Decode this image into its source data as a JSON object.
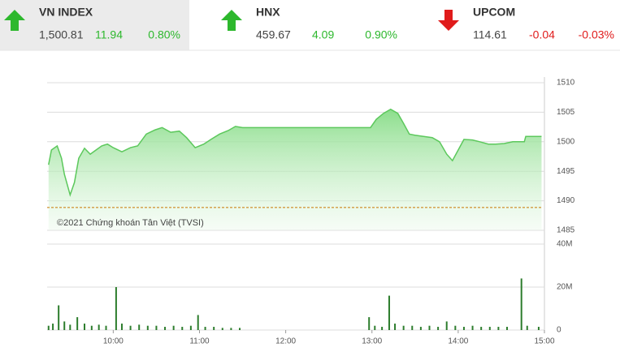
{
  "indices": [
    {
      "name": "VN INDEX",
      "value": "1,500.81",
      "change": "11.94",
      "percent": "0.80%",
      "direction": "up",
      "highlighted": true
    },
    {
      "name": "HNX",
      "value": "459.67",
      "change": "4.09",
      "percent": "0.90%",
      "direction": "up",
      "highlighted": false
    },
    {
      "name": "UPCOM",
      "value": "114.61",
      "change": "-0.04",
      "percent": "-0.03%",
      "direction": "down",
      "highlighted": false
    }
  ],
  "chart_data": [
    {
      "type": "area",
      "x": [
        555,
        557,
        561,
        564,
        566,
        570,
        573,
        576,
        580,
        584,
        588,
        592,
        596,
        600,
        606,
        612,
        617,
        623,
        629,
        634,
        640,
        646,
        651,
        657,
        663,
        668,
        674,
        680,
        685,
        690,
        719,
        779,
        783,
        788,
        793,
        798,
        802,
        806,
        810,
        816,
        822,
        827,
        832,
        836,
        840,
        844,
        850,
        855,
        861,
        866,
        872,
        878,
        886,
        887,
        898
      ],
      "values": [
        1496.1,
        1498.6,
        1499.3,
        1497.2,
        1494.5,
        1491.0,
        1493.1,
        1497.2,
        1498.9,
        1497.9,
        1498.6,
        1499.3,
        1499.6,
        1499.0,
        1498.3,
        1499.0,
        1499.3,
        1501.3,
        1502.0,
        1502.4,
        1501.6,
        1501.8,
        1500.7,
        1499.0,
        1499.6,
        1500.4,
        1501.3,
        1501.9,
        1502.6,
        1502.4,
        1502.4,
        1502.4,
        1503.8,
        1504.8,
        1505.5,
        1504.8,
        1503.1,
        1501.3,
        1501.1,
        1500.9,
        1500.7,
        1500.0,
        1497.9,
        1496.8,
        1498.6,
        1500.4,
        1500.3,
        1500.0,
        1499.6,
        1499.6,
        1499.7,
        1500.0,
        1500.0,
        1500.9,
        1500.9
      ],
      "color": "#5cc85c",
      "xlim": [
        554,
        900
      ],
      "ylim": [
        1485,
        1510
      ],
      "yticks": [
        1485,
        1490,
        1495,
        1500,
        1505,
        1510
      ],
      "reference_line": 1488.87,
      "reference_color": "#c87800",
      "annotation": "©2021 Chứng khoán Tân Việt (TVSI)",
      "grid": true
    },
    {
      "type": "bar",
      "x": [
        555,
        558,
        562,
        566,
        570,
        575,
        580,
        585,
        590,
        595,
        602,
        606,
        612,
        618,
        624,
        630,
        636,
        642,
        648,
        654,
        659,
        664,
        670,
        676,
        682,
        688,
        778,
        782,
        787,
        792,
        796,
        802,
        808,
        814,
        820,
        826,
        832,
        838,
        844,
        850,
        856,
        862,
        868,
        874,
        884,
        888,
        896
      ],
      "values": [
        2000000,
        3000000,
        11500000,
        4000000,
        2500000,
        6000000,
        3000000,
        2000000,
        2500000,
        2000000,
        20000000,
        3000000,
        2000000,
        2500000,
        2000000,
        2000000,
        1500000,
        2000000,
        1500000,
        2000000,
        7000000,
        1500000,
        1500000,
        1000000,
        1000000,
        1000000,
        6000000,
        2000000,
        1500000,
        16000000,
        3000000,
        2000000,
        2000000,
        1500000,
        2000000,
        1500000,
        4000000,
        2000000,
        1500000,
        2000000,
        1500000,
        1500000,
        1500000,
        1500000,
        24000000,
        2000000,
        1500000
      ],
      "color": "#2d7d2d",
      "xlim": [
        554,
        900
      ],
      "ylim": [
        0,
        40000000
      ],
      "yticks": [
        0,
        {
          "value": 20000000,
          "label": "20M"
        },
        {
          "value": 40000000,
          "label": "40M"
        }
      ],
      "xticks": [
        {
          "value": 600,
          "label": "10:00"
        },
        {
          "value": 660,
          "label": "11:00"
        },
        {
          "value": 720,
          "label": "12:00"
        },
        {
          "value": 780,
          "label": "13:00"
        },
        {
          "value": 840,
          "label": "14:00"
        },
        {
          "value": 900,
          "label": "15:00"
        }
      ],
      "grid": true
    }
  ]
}
